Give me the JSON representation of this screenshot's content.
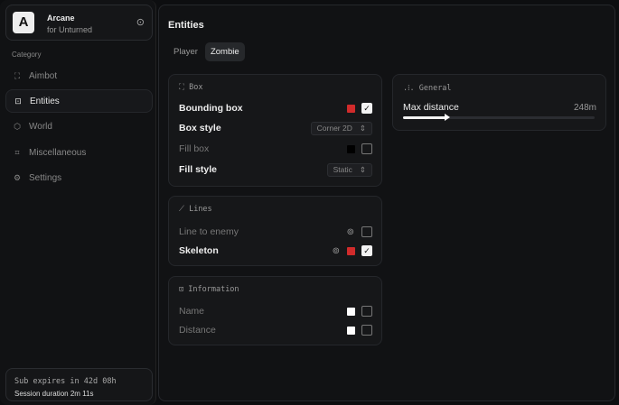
{
  "brand": {
    "logo": "A",
    "name": "Arcane",
    "subtitle": "for Unturned"
  },
  "sidebar": {
    "category_label": "Category",
    "items": [
      {
        "label": "Aimbot",
        "icon": "crosshair-icon"
      },
      {
        "label": "Entities",
        "icon": "scan-face-icon",
        "active": true
      },
      {
        "label": "World",
        "icon": "globe-icon"
      },
      {
        "label": "Miscellaneous",
        "icon": "grid-icon"
      },
      {
        "label": "Settings",
        "icon": "gear-icon"
      }
    ]
  },
  "subscription": {
    "expires": "Sub expires in 42d 08h",
    "session": "Session duration 2m 11s"
  },
  "main": {
    "title": "Entities",
    "tabs": [
      {
        "label": "Player"
      },
      {
        "label": "Zombie",
        "active": true
      }
    ]
  },
  "box": {
    "title": "Box",
    "bounding_box": "Bounding box",
    "bounding_color": "#d12b2b",
    "bounding_checked": true,
    "box_style": "Box style",
    "box_style_value": "Corner 2D",
    "fill_box": "Fill box",
    "fill_color": "#000000",
    "fill_checked": false,
    "fill_style": "Fill style",
    "fill_style_value": "Static"
  },
  "lines": {
    "title": "Lines",
    "line_to_enemy": "Line to enemy",
    "line_checked": false,
    "skeleton": "Skeleton",
    "skeleton_color": "#d12b2b",
    "skeleton_checked": true
  },
  "information": {
    "title": "Information",
    "name": "Name",
    "name_color": "#ffffff",
    "name_checked": false,
    "distance": "Distance",
    "distance_color": "#ffffff",
    "distance_checked": false
  },
  "general": {
    "title": "General",
    "max_distance": "Max distance",
    "max_distance_value": "248m",
    "slider_fraction": 0.23
  }
}
